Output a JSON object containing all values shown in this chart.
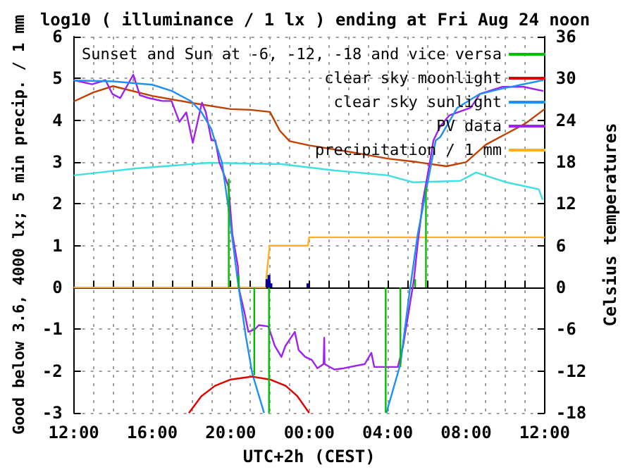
{
  "chart_data": {
    "type": "line",
    "title": "log10 ( illuminance / 1 lx ) ending at Fri Aug 24 noon",
    "xlabel": "UTC+2h (CEST)",
    "ylabel": "Good below 3.6, 4000 lx; 5 min precip. / 1 mm",
    "y2label": "Celsius temperatures",
    "xlim": [
      "--08-23T12:00",
      "--08-24T12:00"
    ],
    "ylim": [
      -3,
      6
    ],
    "y2lim": [
      -18,
      36
    ],
    "xticks": [
      {
        "value": "--08-23T12:00",
        "label": "12:00"
      },
      {
        "value": "--08-23T13:00",
        "label": null
      },
      {
        "value": "--08-23T14:00",
        "label": null
      },
      {
        "value": "--08-23T15:00",
        "label": null
      },
      {
        "value": "--08-23T16:00",
        "label": "16:00"
      },
      {
        "value": "--08-23T17:00",
        "label": null
      },
      {
        "value": "--08-23T18:00",
        "label": null
      },
      {
        "value": "--08-23T19:00",
        "label": null
      },
      {
        "value": "--08-23T20:00",
        "label": "20:00"
      },
      {
        "value": "--08-23T21:00",
        "label": null
      },
      {
        "value": "--08-23T22:00",
        "label": null
      },
      {
        "value": "--08-23T23:00",
        "label": null
      },
      {
        "value": "--08-24T00:00",
        "label": "00:00"
      },
      {
        "value": "--08-24T01:00",
        "label": null
      },
      {
        "value": "--08-24T02:00",
        "label": null
      },
      {
        "value": "--08-24T03:00",
        "label": null
      },
      {
        "value": "--08-24T04:00",
        "label": "04:00"
      },
      {
        "value": "--08-24T05:00",
        "label": null
      },
      {
        "value": "--08-24T06:00",
        "label": null
      },
      {
        "value": "--08-24T07:00",
        "label": null
      },
      {
        "value": "--08-24T08:00",
        "label": "08:00"
      },
      {
        "value": "--08-24T09:00",
        "label": null
      },
      {
        "value": "--08-24T10:00",
        "label": null
      },
      {
        "value": "--08-24T11:00",
        "label": null
      },
      {
        "value": "--08-24T12:00",
        "label": "12:00"
      }
    ],
    "yticks": [
      -3,
      -2,
      -1,
      0,
      1,
      2,
      3,
      4,
      5,
      6
    ],
    "y2ticks": [
      -18,
      -12,
      -6,
      0,
      6,
      12,
      18,
      24,
      30,
      36
    ],
    "grid": true,
    "legend": "top right",
    "series": [
      {
        "name": "Sunset and Sun at -6, -12, -18 and vice versa",
        "color": "#00c000",
        "x": [
          "--08-23T19:54",
          "--08-23T19:54"
        ],
        "values": [
          0,
          2.6
        ]
      },
      {
        "color": "#00c000",
        "x": [
          "--08-23T20:24",
          "--08-23T20:24"
        ],
        "values": [
          0,
          0.3
        ]
      },
      {
        "color": "#00c000",
        "x": [
          "--08-23T21:12",
          "--08-23T21:12"
        ],
        "values": [
          0,
          -2.1
        ]
      },
      {
        "color": "#00c000",
        "x": [
          "--08-23T21:57",
          "--08-23T21:57"
        ],
        "values": [
          0,
          -3
        ]
      },
      {
        "color": "#00c000",
        "x": [
          "--08-24T03:54",
          "--08-24T03:54"
        ],
        "values": [
          0,
          -3
        ]
      },
      {
        "color": "#00c000",
        "x": [
          "--08-24T04:39",
          "--08-24T04:39"
        ],
        "values": [
          0,
          -1.9
        ]
      },
      {
        "color": "#00c000",
        "x": [
          "--08-24T05:24",
          "--08-24T05:24"
        ],
        "values": [
          0,
          0.2
        ]
      },
      {
        "color": "#00c000",
        "x": [
          "--08-24T05:57",
          "--08-24T05:57"
        ],
        "values": [
          0,
          2.4
        ]
      },
      {
        "name": "clear sky moonlight",
        "color": "#e00000",
        "x": [
          "--08-23T17:52",
          "--08-23T18:30",
          "--08-23T19:12",
          "--08-23T20:00",
          "--08-23T21:06",
          "--08-23T22:00",
          "--08-23T22:48",
          "--08-23T23:24",
          "--08-24T00:00"
        ],
        "values": [
          -3,
          -2.6,
          -2.35,
          -2.2,
          -2.13,
          -2.2,
          -2.35,
          -2.6,
          -3
        ]
      },
      {
        "name": "clear sky sunlight",
        "color": "#2090f0",
        "x": [
          "--08-23T12:00",
          "--08-23T14:00",
          "--08-23T16:00",
          "--08-23T17:00",
          "--08-23T18:00",
          "--08-23T18:30",
          "--08-23T19:00",
          "--08-23T19:12",
          "--08-23T19:33",
          "--08-23T19:54",
          "--08-23T20:21",
          "--08-23T20:46",
          "--08-23T21:06",
          "--08-23T21:42"
        ],
        "values": [
          4.95,
          4.93,
          4.85,
          4.7,
          4.45,
          4.2,
          3.8,
          3.5,
          3.0,
          1.85,
          0.18,
          -1.16,
          -2.06,
          -3
        ]
      },
      {
        "color": "#2090f0",
        "x": [
          "--08-24T03:56",
          "--08-24T04:39",
          "--08-24T05:06",
          "--08-24T05:32",
          "--08-24T06:00",
          "--08-24T06:27",
          "--08-24T06:41",
          "--08-24T07:33",
          "--08-24T08:42",
          "--08-24T09:51",
          "--08-24T11:56"
        ],
        "values": [
          -3,
          -1.83,
          -0.16,
          1.28,
          2.42,
          3.52,
          3.6,
          4.3,
          4.63,
          4.76,
          4.96
        ]
      },
      {
        "name": "PV data",
        "color": "#a020f0",
        "x": [
          "--08-23T12:00",
          "--08-23T12:56",
          "--08-23T13:37",
          "--08-23T13:58",
          "--08-23T14:22",
          "--08-23T15:02",
          "--08-23T15:22",
          "--08-23T15:50",
          "--08-23T16:31",
          "--08-23T16:59",
          "--08-23T17:23",
          "--08-23T17:44",
          "--08-23T18:04",
          "--08-23T18:32",
          "--08-23T18:44",
          "--08-23T19:01",
          "--08-23T19:13",
          "--08-23T19:25",
          "--08-23T19:53",
          "--08-23T20:05",
          "--08-23T20:22",
          "--08-23T20:26",
          "--08-23T20:42",
          "--08-23T20:54",
          "--08-23T21:14",
          "--08-23T21:26",
          "--08-23T21:55",
          "--08-23T22:15",
          "--08-23T22:35",
          "--08-23T22:47",
          "--08-23T23:16",
          "--08-23T23:28",
          "--08-23T23:48",
          "--08-24T00:08",
          "--08-24T00:25",
          "--08-24T00:44",
          "--08-24T00:46",
          "--08-24T00:47",
          "--08-24T01:17",
          "--08-24T01:46",
          "--08-24T02:50",
          "--08-24T03:10",
          "--08-24T03:19",
          "--08-24T04:31",
          "--08-24T04:47",
          "--08-24T04:59",
          "--08-24T05:20",
          "--08-24T05:32",
          "--08-24T05:48",
          "--08-24T06:08",
          "--08-24T06:20",
          "--08-24T06:41",
          "--08-24T07:09",
          "--08-24T08:14",
          "--08-24T08:42",
          "--08-24T09:51",
          "--08-24T10:56",
          "--08-24T11:56"
        ],
        "values": [
          4.96,
          4.86,
          4.96,
          4.63,
          4.53,
          5.09,
          4.6,
          4.53,
          4.46,
          4.46,
          3.96,
          4.19,
          3.46,
          4.42,
          4.19,
          3.52,
          3.52,
          3.0,
          2.42,
          1.28,
          0.5,
          -0.06,
          -0.6,
          -1.06,
          -1.0,
          -0.9,
          -0.93,
          -1.4,
          -1.66,
          -1.4,
          -1.06,
          -1.5,
          -1.66,
          -1.73,
          -1.93,
          -1.83,
          -1.2,
          -1.83,
          -1.96,
          -1.93,
          -1.83,
          -1.56,
          -1.9,
          -1.9,
          -1.4,
          -0.83,
          0.17,
          1.06,
          2.08,
          2.95,
          3.52,
          3.86,
          4.12,
          4.3,
          4.63,
          4.8,
          4.8,
          4.7
        ]
      },
      {
        "name": "precipitation / 1 mm",
        "color": "#ffb020",
        "x": [
          "--08-23T12:00",
          "--08-23T21:47",
          "--08-23T21:51",
          "--08-23T21:59",
          "--08-23T23:56",
          "--08-24T00:00",
          "--08-24T12:00"
        ],
        "values": [
          0,
          0,
          0.4,
          1.0,
          1.0,
          1.2,
          1.2
        ]
      },
      {
        "type": "bar",
        "color": "#0000a0",
        "x": [
          "--08-23T21:51",
          "--08-23T21:57",
          "--08-23T22:03",
          "--08-23T23:56"
        ],
        "values": [
          0.2,
          0.3,
          0.1,
          0.1
        ]
      },
      {
        "color": "#c04000",
        "axis": "y2",
        "x": [
          "--08-23T12:00",
          "--08-23T13:00",
          "--08-23T14:00",
          "--08-23T16:00",
          "--08-23T18:00",
          "--08-23T20:00",
          "--08-23T21:00",
          "--08-23T22:00",
          "--08-23T22:30",
          "--08-23T23:00",
          "--08-24T00:00",
          "--08-24T02:00",
          "--08-24T04:00",
          "--08-24T05:30",
          "--08-24T07:00",
          "--08-24T08:00",
          "--08-24T09:00",
          "--08-24T10:00",
          "--08-24T11:00",
          "--08-24T12:00"
        ],
        "values": [
          26.7,
          28,
          28.9,
          27.5,
          26.5,
          25.6,
          25.5,
          25.2,
          22.5,
          21,
          20.4,
          19.5,
          18.5,
          18,
          17.4,
          18,
          20.5,
          22,
          23.5,
          25.6
        ]
      },
      {
        "color": "#40e0e0",
        "axis": "y2",
        "x": [
          "--08-23T12:00",
          "--08-23T15:12",
          "--08-23T18:54",
          "--08-23T22:36",
          "--08-24T01:18",
          "--08-24T04:00",
          "--08-24T05:18",
          "--08-24T07:42",
          "--08-24T08:30",
          "--08-24T10:03",
          "--08-24T11:42",
          "--08-24T11:54"
        ],
        "values": [
          16.1,
          17.1,
          17.9,
          17.7,
          16.8,
          16.1,
          15.1,
          15.3,
          16.5,
          15.1,
          14.1,
          12.6
        ]
      }
    ]
  }
}
